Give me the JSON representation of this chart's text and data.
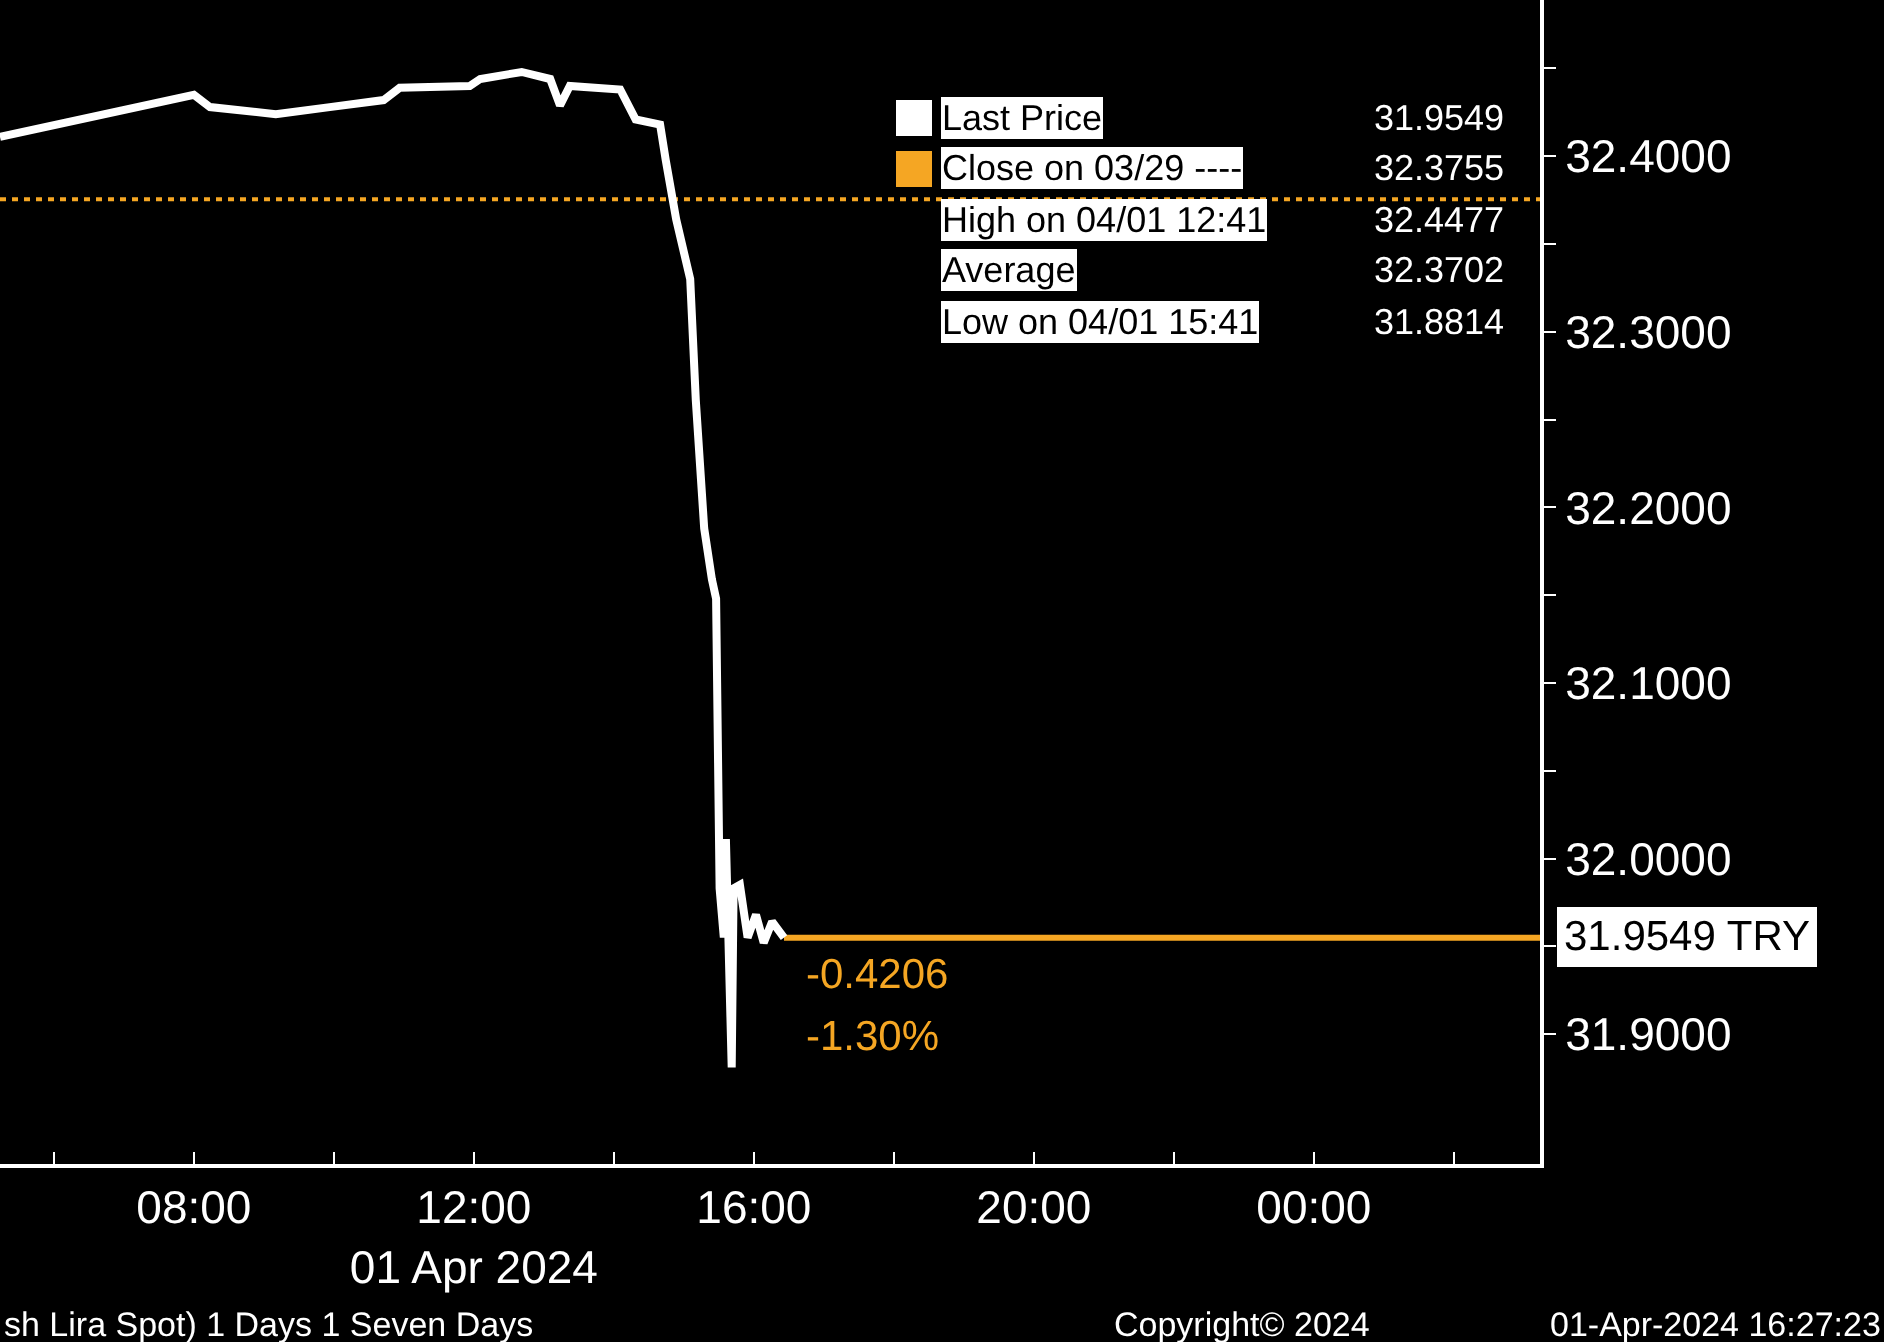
{
  "chart_data": {
    "type": "line",
    "x": [
      5.23,
      8.0,
      8.23,
      9.17,
      9.94,
      10.71,
      10.94,
      11.94,
      12.09,
      12.683,
      13.09,
      13.23,
      13.37,
      14.09,
      14.31,
      14.66,
      14.74,
      14.89,
      15.09,
      15.17,
      15.29,
      15.4,
      15.46,
      15.51,
      15.57,
      15.6,
      15.683,
      15.71,
      15.8,
      15.91,
      16.03,
      16.14,
      16.26,
      16.43
    ],
    "series": [
      {
        "name": "Last Price",
        "color": "#ffffff",
        "values": [
          32.411,
          32.435,
          32.428,
          32.424,
          32.428,
          32.432,
          32.439,
          32.44,
          32.444,
          32.448,
          32.444,
          32.429,
          32.44,
          32.438,
          32.421,
          32.418,
          32.398,
          32.364,
          32.33,
          32.261,
          32.188,
          32.159,
          32.148,
          31.983,
          31.955,
          32.011,
          31.881,
          31.983,
          31.985,
          31.955,
          31.968,
          31.952,
          31.964,
          31.9549
        ]
      }
    ],
    "xlim": [
      5.23,
      27.23
    ],
    "xticks": [
      {
        "value": 6,
        "label": null
      },
      {
        "value": 8,
        "label": "08:00"
      },
      {
        "value": 10,
        "label": null
      },
      {
        "value": 12,
        "label": "12:00\n01 Apr 2024"
      },
      {
        "value": 14,
        "label": null
      },
      {
        "value": 16,
        "label": "16:00"
      },
      {
        "value": 18,
        "label": null
      },
      {
        "value": 20,
        "label": "20:00"
      },
      {
        "value": 22,
        "label": null
      },
      {
        "value": 24,
        "label": "00:00"
      },
      {
        "value": 26,
        "label": null
      }
    ],
    "ylim": [
      31.826,
      32.489
    ],
    "yticks": [
      {
        "value": 31.9,
        "label": "31.9000"
      },
      {
        "value": 31.95,
        "label": null
      },
      {
        "value": 32.0,
        "label": "32.0000"
      },
      {
        "value": 32.05,
        "label": null
      },
      {
        "value": 32.1,
        "label": "32.1000"
      },
      {
        "value": 32.15,
        "label": null
      },
      {
        "value": 32.2,
        "label": "32.2000"
      },
      {
        "value": 32.25,
        "label": null
      },
      {
        "value": 32.3,
        "label": "32.3000"
      },
      {
        "value": 32.35,
        "label": null
      },
      {
        "value": 32.4,
        "label": "32.4000"
      },
      {
        "value": 32.45,
        "label": null
      }
    ],
    "ref_lines": [
      {
        "axis": "y",
        "value": 32.3755,
        "label": "Close on 03/29 ----",
        "color": "#f5a623",
        "line_style": "dotted"
      },
      {
        "axis": "y",
        "value": 31.9549,
        "color": "#f5a623",
        "line_style": "solid"
      }
    ],
    "annotations": [
      "31.9549",
      "32.3755",
      "High on 04/01 12:41",
      "32.4477",
      "Average",
      "32.3702",
      "Low on 04/01 15:41",
      "31.8814",
      "-0.4206",
      "-1.30%",
      "31.9549 TRY",
      "sh Lira Spot) 1 Days 1 Seven Days",
      "Copyright© 2024",
      "01-Apr-2024 16:27:23"
    ],
    "legend": "top right",
    "grid": false,
    "marker": "none",
    "line_style": "solid"
  }
}
